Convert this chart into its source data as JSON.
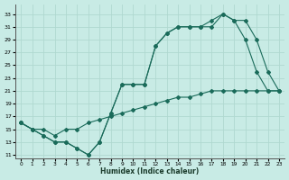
{
  "xlabel": "Humidex (Indice chaleur)",
  "bg_color": "#c8ebe5",
  "line_color": "#1a6b5a",
  "grid_color": "#b0d8d0",
  "xlim": [
    -0.5,
    23.5
  ],
  "ylim": [
    10.5,
    34.5
  ],
  "xticks": [
    0,
    1,
    2,
    3,
    4,
    5,
    6,
    7,
    8,
    9,
    10,
    11,
    12,
    13,
    14,
    15,
    16,
    17,
    18,
    19,
    20,
    21,
    22,
    23
  ],
  "yticks": [
    11,
    13,
    15,
    17,
    19,
    21,
    23,
    25,
    27,
    29,
    31,
    33
  ],
  "line1_x": [
    0,
    1,
    2,
    3,
    4,
    5,
    6,
    7,
    8,
    9,
    10,
    11,
    12,
    13,
    14,
    15,
    16,
    17,
    18,
    19,
    20,
    21,
    22,
    23
  ],
  "line1_y": [
    16,
    15,
    14,
    13,
    13,
    12,
    11,
    13,
    17.5,
    22,
    22,
    22,
    28,
    30,
    31,
    31,
    31,
    31,
    33,
    32,
    29,
    24,
    21,
    21
  ],
  "line2_x": [
    0,
    1,
    2,
    3,
    4,
    5,
    6,
    7,
    8,
    9,
    10,
    11,
    12,
    13,
    14,
    15,
    16,
    17,
    18,
    19,
    20,
    21,
    22,
    23
  ],
  "line2_y": [
    16,
    15,
    14,
    13,
    13,
    12,
    11,
    13,
    17.5,
    22,
    22,
    22,
    28,
    30,
    31,
    31,
    31,
    32,
    33,
    32,
    32,
    29,
    24,
    21
  ],
  "line3_x": [
    0,
    1,
    2,
    3,
    4,
    5,
    6,
    7,
    8,
    9,
    10,
    11,
    12,
    13,
    14,
    15,
    16,
    17,
    18,
    19,
    20,
    21,
    22,
    23
  ],
  "line3_y": [
    16,
    15,
    15,
    14,
    15,
    15,
    16,
    16.5,
    17,
    17.5,
    18,
    18.5,
    19,
    19.5,
    20,
    20,
    20.5,
    21,
    21,
    21,
    21,
    21,
    21,
    21
  ]
}
